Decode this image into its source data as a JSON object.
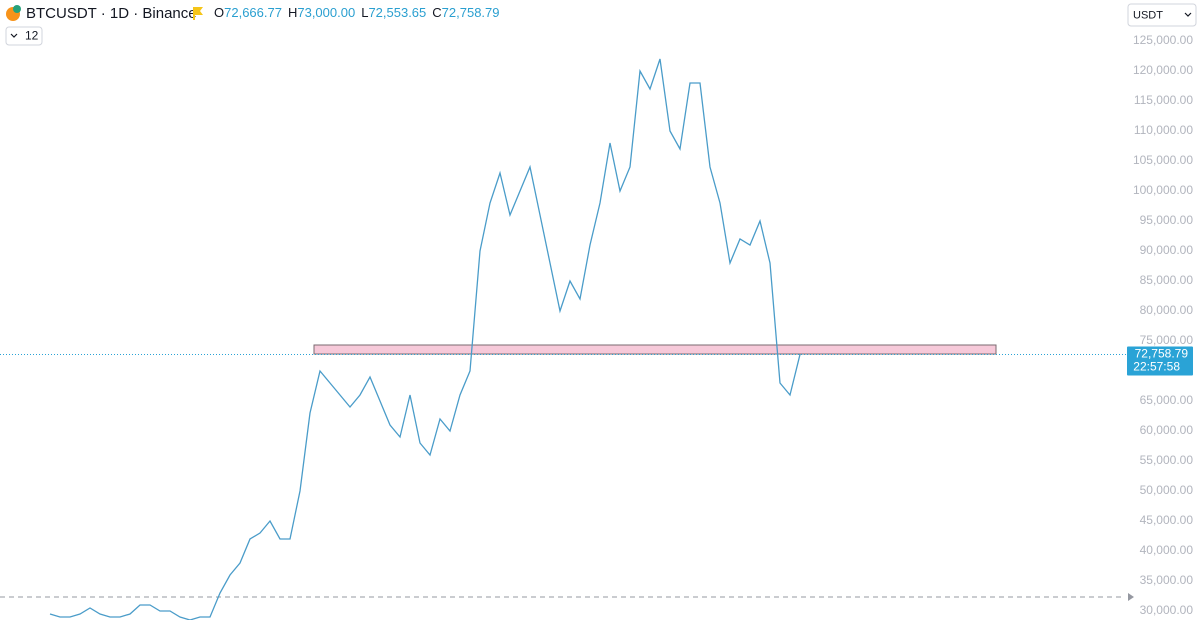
{
  "chart_data": {
    "type": "line",
    "title": "BTCUSDT · 1D · Binance",
    "ohlc": [
      {
        "key": "O",
        "value": 72666.77,
        "label": "72,666.77"
      },
      {
        "key": "H",
        "value": 73000.0,
        "label": "73,000.00"
      },
      {
        "key": "L",
        "value": 72553.65,
        "label": "72,553.65"
      },
      {
        "key": "C",
        "value": 72758.79,
        "label": "72,758.79"
      }
    ],
    "currency": "USDT",
    "interval_count": "12",
    "categories": [
      null,
      null,
      null,
      null,
      null,
      null,
      null,
      null,
      null,
      null,
      null,
      null,
      null,
      null,
      null,
      null,
      null,
      null,
      null,
      null,
      null,
      null,
      null,
      null,
      null,
      null,
      null,
      null,
      null,
      null,
      null,
      null,
      null,
      null,
      null,
      null,
      null,
      null,
      null,
      null,
      null,
      null,
      null,
      null,
      null,
      null,
      null,
      null,
      null,
      null,
      null,
      null,
      null,
      null,
      null,
      null,
      null,
      null,
      null,
      null,
      null,
      null,
      null,
      null,
      null,
      null,
      null,
      null,
      null,
      null,
      null,
      null,
      null,
      null,
      null,
      null
    ],
    "values": [
      29500,
      29000,
      29000,
      29500,
      30500,
      29500,
      29000,
      29000,
      29500,
      31000,
      31000,
      30000,
      30000,
      29000,
      28500,
      29000,
      29000,
      33000,
      36000,
      38000,
      42000,
      43000,
      45000,
      42000,
      42000,
      50000,
      63000,
      70000,
      68000,
      66000,
      64000,
      66000,
      69000,
      65000,
      61000,
      59000,
      66000,
      58000,
      56000,
      62000,
      60000,
      66000,
      70000,
      90000,
      98000,
      103000,
      96000,
      100000,
      104000,
      96000,
      88000,
      80000,
      85000,
      82000,
      91000,
      98000,
      108000,
      100000,
      104000,
      120000,
      117000,
      122000,
      110000,
      107000,
      118000,
      118000,
      104000,
      98000,
      88000,
      92000,
      91000,
      95000,
      88000,
      68000,
      66000,
      72758.79
    ],
    "color": "#4a9cc9",
    "last_price": {
      "value": 72758.79,
      "label": "72,758.79",
      "countdown": "22:57:58",
      "color": "#2aa3d6"
    },
    "band": {
      "from": 72833,
      "to": 74333,
      "color": "#f6c9d9"
    },
    "hline": {
      "value": 32333,
      "style": "dashed",
      "color": "#9598a1"
    },
    "ylim": [
      28500,
      131833
    ],
    "yticks": [
      {
        "value": 30000,
        "label": "30,000.00"
      },
      {
        "value": 35000,
        "label": "35,000.00"
      },
      {
        "value": 40000,
        "label": "40,000.00"
      },
      {
        "value": 45000,
        "label": "45,000.00"
      },
      {
        "value": 50000,
        "label": "50,000.00"
      },
      {
        "value": 55000,
        "label": "55,000.00"
      },
      {
        "value": 60000,
        "label": "60,000.00"
      },
      {
        "value": 65000,
        "label": "65,000.00"
      },
      {
        "value": 70000,
        "label": "70,000.00"
      },
      {
        "value": 75000,
        "label": "75,000.00"
      },
      {
        "value": 80000,
        "label": "80,000.00"
      },
      {
        "value": 85000,
        "label": "85,000.00"
      },
      {
        "value": 90000,
        "label": "90,000.00"
      },
      {
        "value": 95000,
        "label": "95,000.00"
      },
      {
        "value": 100000,
        "label": "100,000.00"
      },
      {
        "value": 105000,
        "label": "105,000.00"
      },
      {
        "value": 110000,
        "label": "110,000.00"
      },
      {
        "value": 115000,
        "label": "115,000.00"
      },
      {
        "value": 120000,
        "label": "120,000.00"
      },
      {
        "value": 125000,
        "label": "125,000.00"
      }
    ],
    "grid": false
  }
}
